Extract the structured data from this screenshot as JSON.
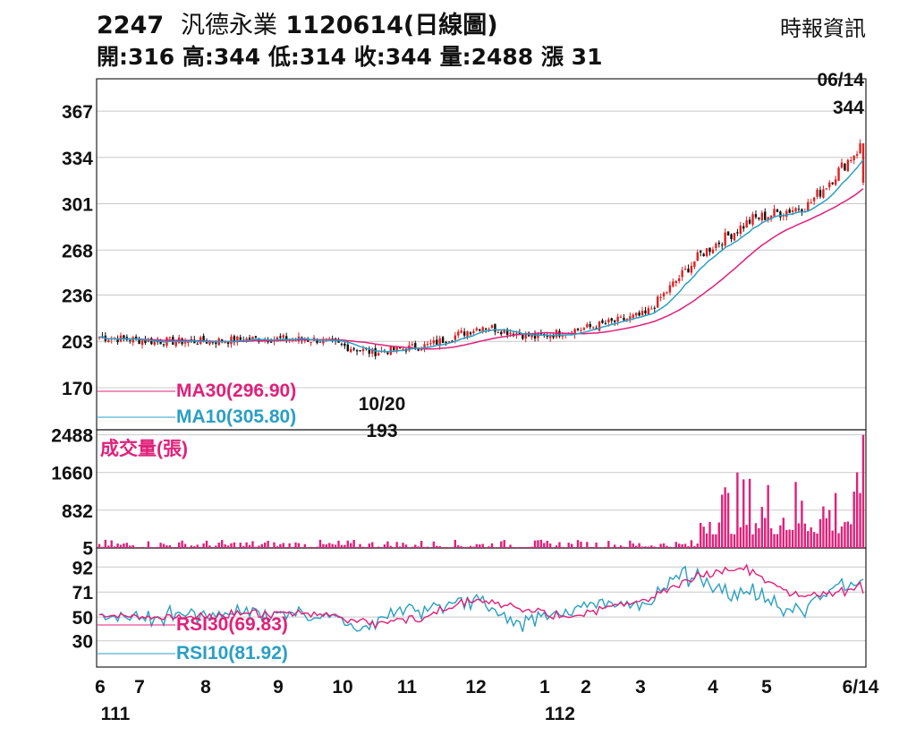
{
  "header": {
    "code": "2247",
    "name": "汎德永業",
    "date_label": "1120614(日線圖)",
    "source": "時報資訊",
    "open_label": "開:",
    "open": "316",
    "high_label": "高:",
    "high": "344",
    "low_label": "低:",
    "low": "314",
    "close_label": "收:",
    "close": "344",
    "volume_label": "量:",
    "volume": "2488",
    "change_label": "漲",
    "change": "31"
  },
  "annotations": {
    "high_date": "06/14",
    "high_value": "344",
    "low_date": "10/20",
    "low_value": "193"
  },
  "colors": {
    "ma30": "#e0207a",
    "ma10": "#2a9fc4",
    "up": "#e02020",
    "down": "#111111",
    "volume": "#e0207a",
    "rsi30": "#e0207a",
    "rsi10": "#2a9fc4",
    "grid": "#c8c8c8"
  },
  "chart_data": [
    {
      "type": "candlestick",
      "panel": "price",
      "yticks": [
        170,
        203,
        236,
        268,
        301,
        334,
        367
      ],
      "ylim": [
        170,
        367
      ],
      "grid": true,
      "series": [
        {
          "name": "MA30(296.90)",
          "label": "MA30(296.90)",
          "value": 296.9
        },
        {
          "name": "MA10(305.80)",
          "label": "MA10(305.80)",
          "value": 305.8
        }
      ],
      "ohlc_last": {
        "date": "06/14",
        "open": 316,
        "high": 344,
        "low": 314,
        "close": 344,
        "change": 31
      },
      "annotated_low": {
        "date": "10/20",
        "value": 193
      },
      "approx_close_path": [
        {
          "date": "111/06",
          "close": 206
        },
        {
          "date": "111/07",
          "close": 203
        },
        {
          "date": "111/08",
          "close": 203
        },
        {
          "date": "111/09",
          "close": 205
        },
        {
          "date": "111/10",
          "close": 204
        },
        {
          "date": "10/20",
          "close": 195
        },
        {
          "date": "111/11",
          "close": 200
        },
        {
          "date": "111/12",
          "close": 214
        },
        {
          "date": "112/01",
          "close": 206
        },
        {
          "date": "112/02",
          "close": 213
        },
        {
          "date": "112/03",
          "close": 222
        },
        {
          "date": "112/04",
          "close": 265
        },
        {
          "date": "112/05",
          "close": 290
        },
        {
          "date": "112/06",
          "close": 300
        },
        {
          "date": "06/14",
          "close": 344
        }
      ]
    },
    {
      "type": "bar",
      "panel": "volume",
      "title": "成交量(張)",
      "yticks": [
        5,
        832,
        1660,
        2488
      ],
      "ylim": [
        0,
        2488
      ],
      "last_value": 2488
    },
    {
      "type": "line",
      "panel": "rsi",
      "yticks": [
        30,
        50,
        71,
        92
      ],
      "ylim": [
        20,
        100
      ],
      "series": [
        {
          "name": "RSI30(69.83)",
          "label": "RSI30(69.83)",
          "last": 69.83
        },
        {
          "name": "RSI10(81.92)",
          "label": "RSI10(81.92)",
          "last": 81.92
        }
      ]
    }
  ],
  "x_axis": {
    "months": [
      {
        "label": "6",
        "year": "111"
      },
      {
        "label": "7"
      },
      {
        "label": "8"
      },
      {
        "label": "9"
      },
      {
        "label": "10"
      },
      {
        "label": "11"
      },
      {
        "label": "12"
      },
      {
        "label": "1",
        "year": "112"
      },
      {
        "label": "2"
      },
      {
        "label": "3"
      },
      {
        "label": "4"
      },
      {
        "label": "5"
      },
      {
        "label": "6/14"
      }
    ]
  }
}
